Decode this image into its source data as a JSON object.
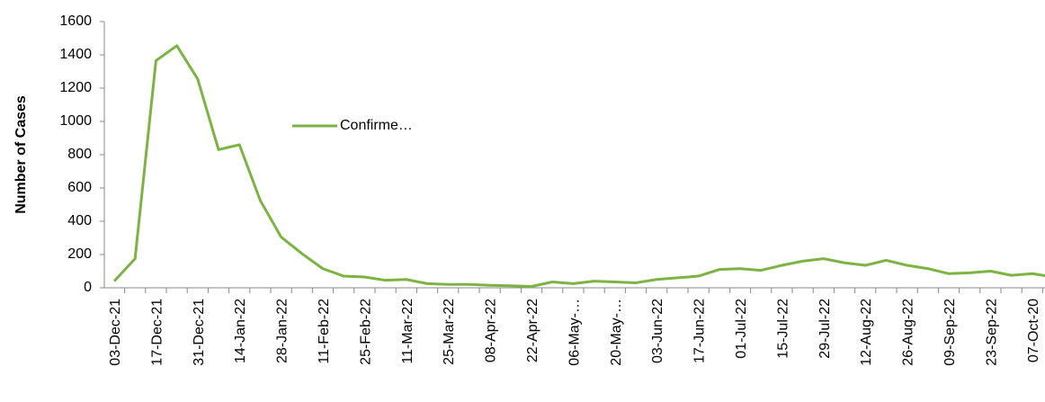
{
  "chart_data": {
    "type": "line",
    "y_label": "Number of Cases",
    "categories": [
      "03-Dec-21",
      null,
      "17-Dec-21",
      null,
      "31-Dec-21",
      null,
      "14-Jan-22",
      null,
      "28-Jan-22",
      null,
      "11-Feb-22",
      null,
      "25-Feb-22",
      null,
      "11-Mar-22",
      null,
      "25-Mar-22",
      null,
      "08-Apr-22",
      null,
      "22-Apr-22",
      null,
      "06-May-…",
      null,
      "20-May-…",
      null,
      "03-Jun-22",
      null,
      "17-Jun-22",
      null,
      "01-Jul-22",
      null,
      "15-Jul-22",
      null,
      "29-Jul-22",
      null,
      "12-Aug-22",
      null,
      "26-Aug-22",
      null,
      "09-Sep-22",
      null,
      "23-Sep-22",
      null,
      "07-Oct-20",
      null
    ],
    "series": [
      {
        "name": "Confirme…",
        "color": "#7cb342",
        "values": [
          40,
          175,
          1365,
          1455,
          1255,
          830,
          860,
          525,
          305,
          205,
          115,
          70,
          65,
          45,
          50,
          25,
          20,
          20,
          15,
          12,
          8,
          35,
          25,
          40,
          35,
          30,
          50,
          60,
          70,
          110,
          115,
          105,
          135,
          160,
          175,
          150,
          135,
          165,
          135,
          115,
          85,
          90,
          100,
          75,
          85,
          65
        ]
      }
    ],
    "ylim": [
      0,
      1600
    ],
    "yticks": [
      0,
      200,
      400,
      600,
      800,
      1000,
      1200,
      1400,
      1600
    ],
    "grid": false
  }
}
